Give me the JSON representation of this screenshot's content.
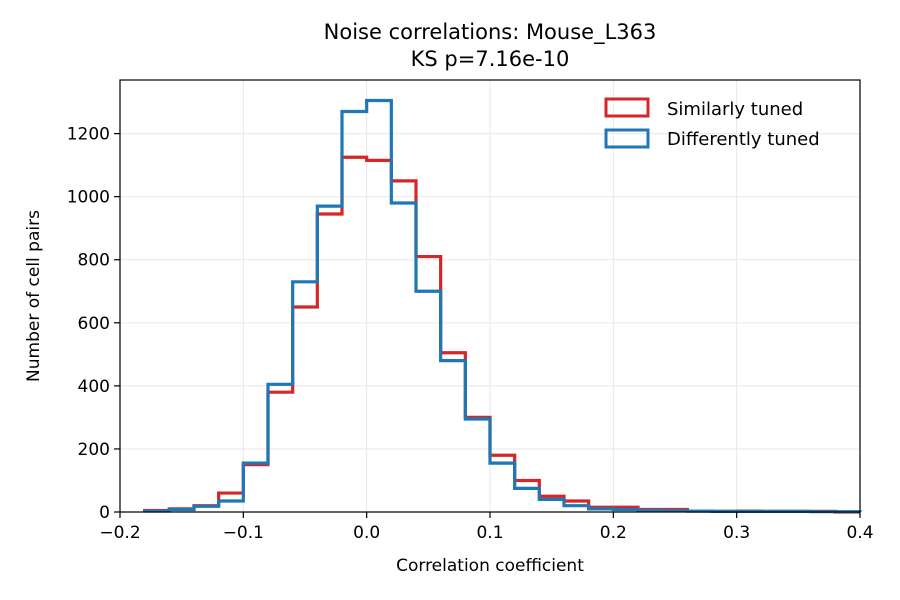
{
  "chart_data": {
    "type": "histogram",
    "title": "Noise correlations: Mouse_L363",
    "subtitle": "KS p=7.16e-10",
    "xlabel": "Correlation coefficient",
    "ylabel": "Number of cell pairs",
    "xlim": [
      -0.2,
      0.4
    ],
    "ylim": [
      0,
      1370
    ],
    "xticks": [
      -0.2,
      -0.1,
      0.0,
      0.1,
      0.2,
      0.3,
      0.4
    ],
    "xtick_labels": [
      "−0.2",
      "−0.1",
      "0.0",
      "0.1",
      "0.2",
      "0.3",
      "0.4"
    ],
    "yticks": [
      0,
      200,
      400,
      600,
      800,
      1000,
      1200
    ],
    "ytick_labels": [
      "0",
      "200",
      "400",
      "600",
      "800",
      "1000",
      "1200"
    ],
    "grid": true,
    "legend_position": "top-right",
    "bin_edges": [
      -0.18,
      -0.16,
      -0.14,
      -0.12,
      -0.1,
      -0.08,
      -0.06,
      -0.04,
      -0.02,
      0.0,
      0.02,
      0.04,
      0.06,
      0.08,
      0.1,
      0.12,
      0.14,
      0.16,
      0.18,
      0.2,
      0.22,
      0.24,
      0.26,
      0.28,
      0.3,
      0.32,
      0.34,
      0.36,
      0.38,
      0.4
    ],
    "series": [
      {
        "name": "Similarly tuned",
        "color": "#d62728",
        "values": [
          5,
          10,
          20,
          60,
          150,
          380,
          650,
          945,
          1125,
          1115,
          1050,
          810,
          505,
          300,
          180,
          100,
          50,
          35,
          15,
          15,
          8,
          8,
          3,
          2,
          3,
          2,
          2,
          2,
          0
        ]
      },
      {
        "name": "Differently tuned",
        "color": "#1f77b4",
        "values": [
          3,
          8,
          18,
          35,
          155,
          405,
          730,
          970,
          1270,
          1305,
          980,
          700,
          480,
          295,
          155,
          75,
          40,
          20,
          10,
          8,
          5,
          4,
          3,
          2,
          2,
          2,
          2,
          1,
          1
        ]
      }
    ]
  }
}
